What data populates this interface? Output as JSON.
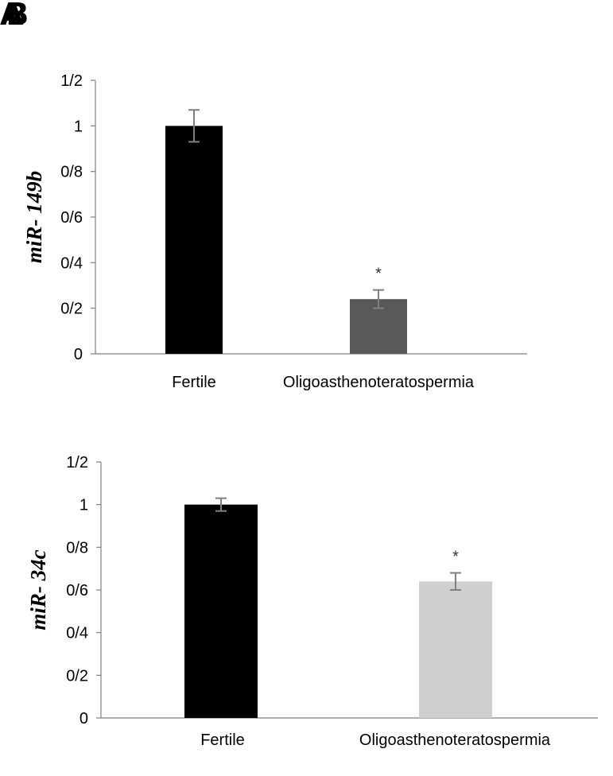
{
  "panel_labels": [
    "A",
    "B"
  ],
  "chart_data": [
    {
      "type": "bar",
      "categories": [
        "Fertile",
        "Oligoasthenoteratospermia"
      ],
      "values": [
        1.0,
        0.24
      ],
      "errors": [
        0.07,
        0.04
      ],
      "significance": [
        "",
        "*"
      ],
      "colors": [
        "#000000",
        "#595959"
      ],
      "ylabel": "miR- 149b",
      "ylim": [
        0,
        1.2
      ],
      "ytick_values": [
        0,
        0.2,
        0.4,
        0.6,
        0.8,
        1.0,
        1.2
      ],
      "ytick_labels": [
        "0",
        "0/2",
        "0/4",
        "0/6",
        "0/8",
        "1",
        "1/2"
      ],
      "grid": false,
      "legend": "none"
    },
    {
      "type": "bar",
      "categories": [
        "Fertile",
        "Oligoasthenoteratospermia"
      ],
      "values": [
        1.0,
        0.64
      ],
      "errors": [
        0.03,
        0.04
      ],
      "significance": [
        "",
        "*"
      ],
      "colors": [
        "#000000",
        "#d0cfcf"
      ],
      "ylabel": "miR- 34c",
      "ylim": [
        0,
        1.2
      ],
      "ytick_values": [
        0,
        0.2,
        0.4,
        0.6,
        0.8,
        1.0,
        1.2
      ],
      "ytick_labels": [
        "0",
        "0/2",
        "0/4",
        "0/6",
        "0/8",
        "1",
        "1/2"
      ],
      "grid": false,
      "legend": "none"
    }
  ]
}
